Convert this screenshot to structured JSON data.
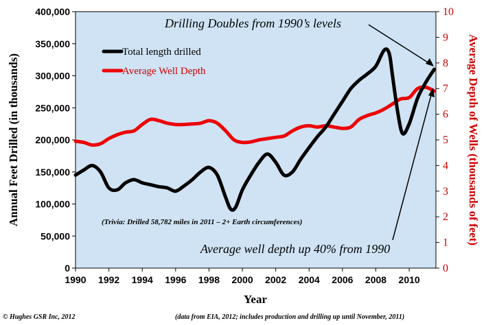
{
  "chart_data": {
    "type": "line",
    "xlabel": "Year",
    "ylabel_left": "Annual Feet Drilled (in thousands)",
    "ylabel_right": "Average Depth of Wells (thousands of feet)",
    "xlim": [
      1990,
      2011.6
    ],
    "ylim_left": [
      0,
      400000
    ],
    "ylim_right": [
      0,
      10
    ],
    "x_ticks": [
      1990,
      1992,
      1994,
      1996,
      1998,
      2000,
      2002,
      2004,
      2006,
      2008,
      2010
    ],
    "y_ticks_left": [
      "0",
      "50,000",
      "100,000",
      "150,000",
      "200,000",
      "250,000",
      "300,000",
      "350,000",
      "400,000"
    ],
    "y_tick_values_left": [
      0,
      50000,
      100000,
      150000,
      200000,
      250000,
      300000,
      350000,
      400000
    ],
    "y_ticks_right": [
      "0",
      "1",
      "2",
      "3",
      "4",
      "5",
      "6",
      "7",
      "8",
      "9",
      "10"
    ],
    "grid": false,
    "legend_position": "top-left",
    "plot_background": "#cfe3f4",
    "series": [
      {
        "name": "Total length drilled",
        "axis": "left",
        "color": "#000000",
        "x": [
          1990,
          1990.5,
          1991,
          1991.5,
          1992,
          1992.5,
          1993,
          1993.5,
          1994,
          1994.5,
          1995,
          1995.5,
          1996,
          1996.5,
          1997,
          1997.5,
          1998,
          1998.5,
          1999,
          1999.3,
          1999.6,
          2000,
          2000.5,
          2001,
          2001.5,
          2002,
          2002.5,
          2003,
          2003.5,
          2004,
          2004.5,
          2005,
          2005.5,
          2006,
          2006.5,
          2007,
          2007.5,
          2008,
          2008.5,
          2008.8,
          2009,
          2009.3,
          2009.6,
          2010,
          2010.5,
          2011,
          2011.5
        ],
        "y": [
          145000,
          153000,
          160000,
          150000,
          125000,
          122000,
          133000,
          138000,
          133000,
          130000,
          127000,
          125000,
          120000,
          128000,
          138000,
          150000,
          157000,
          145000,
          110000,
          92000,
          95000,
          122000,
          145000,
          165000,
          178000,
          165000,
          145000,
          150000,
          170000,
          188000,
          205000,
          220000,
          240000,
          260000,
          280000,
          293000,
          303000,
          315000,
          340000,
          335000,
          300000,
          245000,
          210000,
          225000,
          265000,
          290000,
          310000
        ]
      },
      {
        "name": "Average Well Depth",
        "axis": "right",
        "color": "#ee0000",
        "x": [
          1990,
          1990.5,
          1991,
          1991.5,
          1992,
          1992.5,
          1993,
          1993.5,
          1994,
          1994.5,
          1995,
          1995.5,
          1996,
          1996.5,
          1997,
          1997.5,
          1998,
          1998.5,
          1999,
          1999.5,
          2000,
          2000.5,
          2001,
          2001.5,
          2002,
          2002.5,
          2003,
          2003.5,
          2004,
          2004.5,
          2005,
          2005.5,
          2006,
          2006.5,
          2007,
          2007.5,
          2008,
          2008.5,
          2009,
          2009.5,
          2010,
          2010.5,
          2011,
          2011.5
        ],
        "y": [
          4.95,
          4.9,
          4.8,
          4.85,
          5.05,
          5.2,
          5.3,
          5.35,
          5.6,
          5.8,
          5.75,
          5.65,
          5.6,
          5.6,
          5.62,
          5.65,
          5.75,
          5.65,
          5.35,
          5.0,
          4.9,
          4.92,
          5.0,
          5.05,
          5.1,
          5.15,
          5.35,
          5.5,
          5.55,
          5.5,
          5.55,
          5.5,
          5.45,
          5.5,
          5.8,
          5.95,
          6.05,
          6.2,
          6.4,
          6.6,
          6.65,
          7.0,
          7.05,
          6.9
        ]
      }
    ],
    "annotations": [
      "Drilling Doubles from 1990’s levels",
      "Average well depth up 40% from 1990",
      "(Trivia: Drilled 58,782 miles in 2011 – 2+ Earth circumferences)"
    ]
  },
  "footer": {
    "copyright": "© Hughes GSR Inc, 2012",
    "source": "(data from EIA, 2012; includes production and drilling up until November, 2011)"
  }
}
